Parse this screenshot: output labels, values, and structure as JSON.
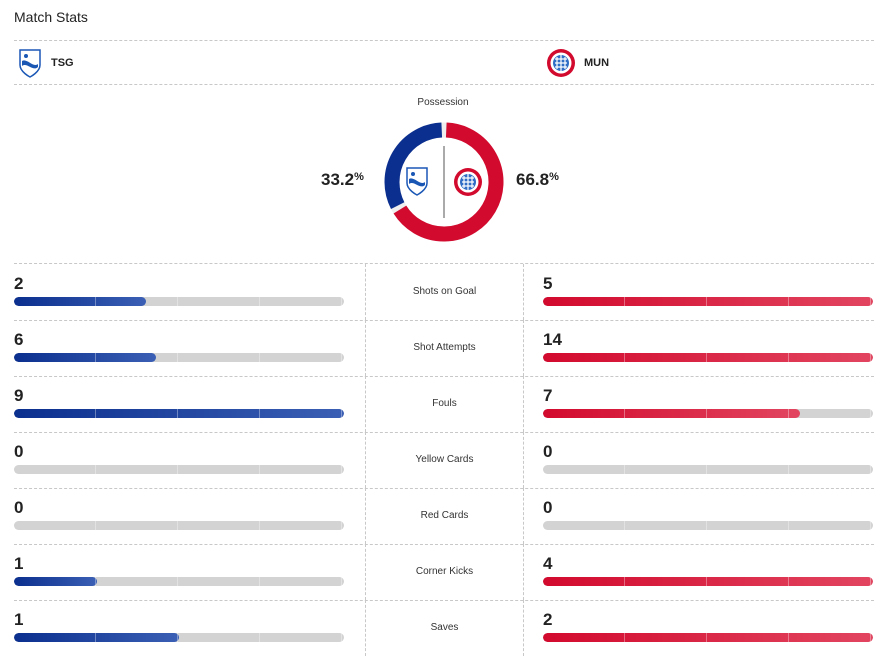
{
  "header": {
    "title": "Match Stats"
  },
  "teams": {
    "home": {
      "abbr": "TSG",
      "color": "#0b2f8e"
    },
    "away": {
      "abbr": "MUN",
      "color": "#d20a2e"
    }
  },
  "possession": {
    "label": "Possession",
    "home_value": "33.2",
    "away_value": "66.8",
    "symbol": "%",
    "home_fraction": 0.332,
    "away_fraction": 0.668
  },
  "stats": [
    {
      "label": "Shots on Goal",
      "home": "2",
      "away": "5",
      "home_fill": 0.4,
      "away_fill": 1.0
    },
    {
      "label": "Shot Attempts",
      "home": "6",
      "away": "14",
      "home_fill": 0.43,
      "away_fill": 1.0
    },
    {
      "label": "Fouls",
      "home": "9",
      "away": "7",
      "home_fill": 1.0,
      "away_fill": 0.78
    },
    {
      "label": "Yellow Cards",
      "home": "0",
      "away": "0",
      "home_fill": 0,
      "away_fill": 0
    },
    {
      "label": "Red Cards",
      "home": "0",
      "away": "0",
      "home_fill": 0,
      "away_fill": 0
    },
    {
      "label": "Corner Kicks",
      "home": "1",
      "away": "4",
      "home_fill": 0.25,
      "away_fill": 1.0
    },
    {
      "label": "Saves",
      "home": "1",
      "away": "2",
      "home_fill": 0.5,
      "away_fill": 1.0
    }
  ]
}
